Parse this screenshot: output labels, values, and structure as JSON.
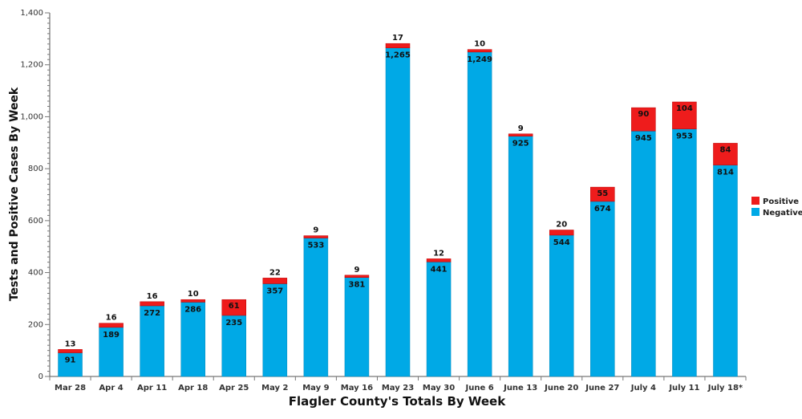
{
  "chart_data": {
    "type": "bar",
    "stacked": true,
    "xlabel": "Flagler County's Totals By Week",
    "ylabel": "Tests and Positive Cases By Week",
    "ylim": [
      0,
      1400
    ],
    "yticks": [
      "0",
      "200",
      "400",
      "600",
      "800",
      "1,000",
      "1,200",
      "1,400"
    ],
    "grid": false,
    "legend_position": "right",
    "categories": [
      "Mar 28",
      "Apr 4",
      "Apr 11",
      "Apr 18",
      "Apr 25",
      "May 2",
      "May 9",
      "May 16",
      "May 23",
      "May 30",
      "June 6",
      "June 13",
      "June 20",
      "June 27",
      "July 4",
      "July 11",
      "July 18*"
    ],
    "series": [
      {
        "name": "Negative",
        "color": "#00a9e6",
        "values": [
          91,
          189,
          272,
          286,
          235,
          357,
          533,
          381,
          1265,
          441,
          1249,
          925,
          544,
          674,
          945,
          953,
          814
        ],
        "labels": [
          "91",
          "189",
          "272",
          "286",
          "235",
          "357",
          "533",
          "381",
          "1,265",
          "441",
          "1,249",
          "925",
          "544",
          "674",
          "945",
          "953",
          "814"
        ]
      },
      {
        "name": "Positive",
        "color": "#ee1c1c",
        "values": [
          13,
          16,
          16,
          10,
          61,
          22,
          9,
          9,
          17,
          12,
          10,
          9,
          20,
          55,
          90,
          104,
          84
        ],
        "labels": [
          "13",
          "16",
          "16",
          "10",
          "61",
          "22",
          "9",
          "9",
          "17",
          "12",
          "10",
          "9",
          "20",
          "55",
          "90",
          "104",
          "84"
        ]
      }
    ]
  }
}
